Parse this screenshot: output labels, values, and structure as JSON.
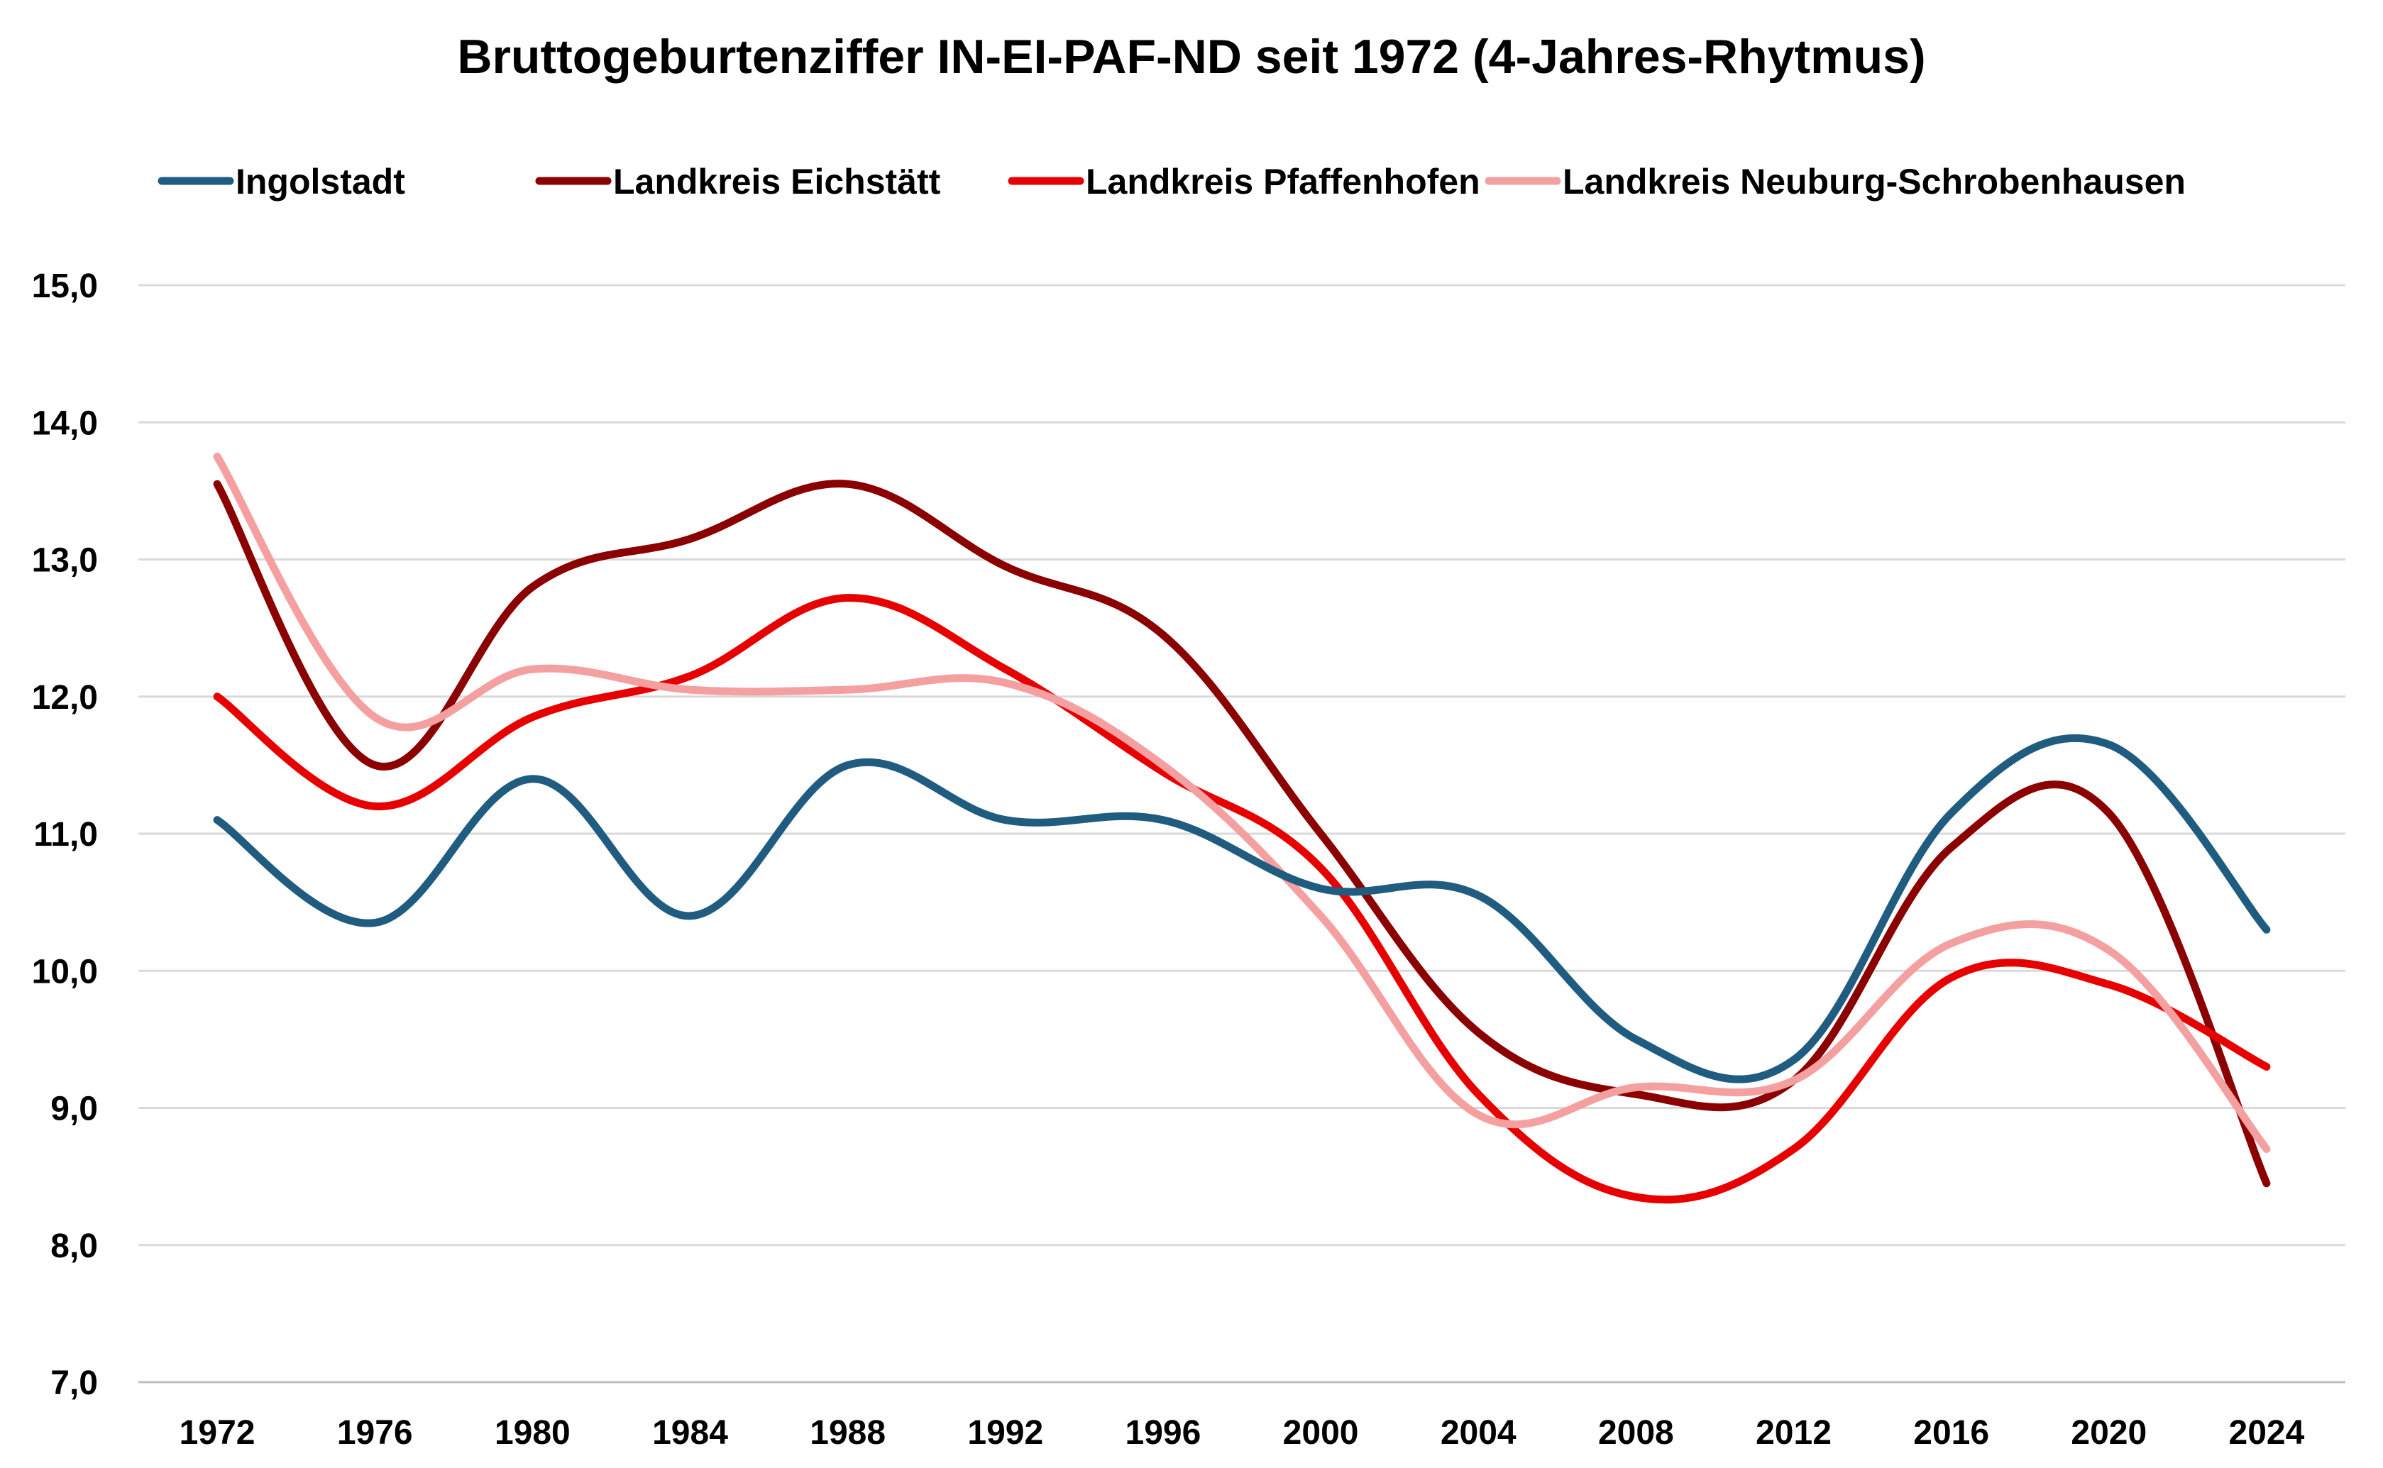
{
  "chart_data": {
    "type": "line",
    "title": "Bruttogeburtenziffer IN-EI-PAF-ND seit 1972 (4-Jahres-Rhytmus)",
    "xlabel": "",
    "ylabel": "",
    "categories": [
      "1972",
      "1976",
      "1980",
      "1984",
      "1988",
      "1992",
      "1996",
      "2000",
      "2004",
      "2008",
      "2012",
      "2016",
      "2020",
      "2024"
    ],
    "y_ticks": [
      "7,0",
      "8,0",
      "9,0",
      "10,0",
      "11,0",
      "12,0",
      "13,0",
      "14,0",
      "15,0"
    ],
    "ylim": [
      7,
      15
    ],
    "grid": true,
    "legend_position": "top",
    "series": [
      {
        "name": "Ingolstadt",
        "color": "#1f5c7f",
        "values": [
          11.1,
          10.35,
          11.4,
          10.4,
          11.5,
          11.1,
          11.1,
          10.6,
          10.55,
          9.5,
          9.35,
          11.15,
          11.65,
          10.3
        ]
      },
      {
        "name": "Landkreis Eichstätt",
        "color": "#8b0000",
        "values": [
          13.55,
          11.5,
          12.8,
          13.15,
          13.55,
          12.95,
          12.45,
          11.0,
          9.55,
          9.1,
          9.2,
          10.9,
          11.15,
          8.45
        ]
      },
      {
        "name": "Landkreis Pfaffenhofen",
        "color": "#e60000",
        "values": [
          12.0,
          11.2,
          11.85,
          12.15,
          12.72,
          12.2,
          11.45,
          10.75,
          9.1,
          8.35,
          8.7,
          9.95,
          9.9,
          9.3
        ]
      },
      {
        "name": "Landkreis Neuburg-Schrobenhausen",
        "color": "#f4a0a0",
        "values": [
          13.75,
          11.85,
          12.2,
          12.05,
          12.05,
          12.1,
          11.5,
          10.4,
          8.95,
          9.15,
          9.2,
          10.2,
          10.15,
          8.7
        ]
      }
    ]
  }
}
